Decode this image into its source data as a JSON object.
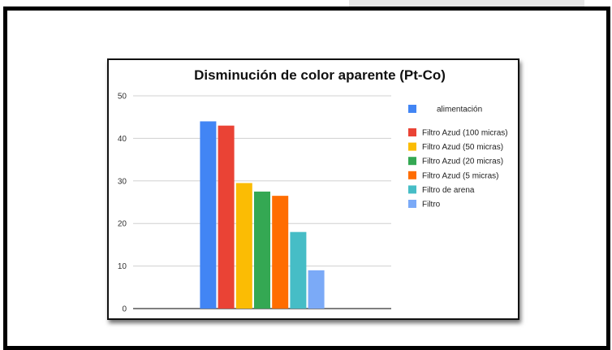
{
  "chart_data": {
    "type": "bar",
    "title": "Disminución de color aparente (Pt-Co)",
    "xlabel": "",
    "ylabel": "",
    "ylim": [
      0,
      50
    ],
    "yticks": [
      "0",
      "10",
      "20",
      "30",
      "40",
      "50"
    ],
    "grid": true,
    "legend_position": "right",
    "series": [
      {
        "name": "alimentación",
        "value": 44,
        "color": "#4285f4"
      },
      {
        "name": "Filtro Azud (100 micras)",
        "value": 43,
        "color": "#ea4335"
      },
      {
        "name": "Filtro Azud (50 micras)",
        "value": 29.5,
        "color": "#fbbc04"
      },
      {
        "name": "Filtro Azud (20 micras)",
        "value": 27.5,
        "color": "#34a853"
      },
      {
        "name": "Filtro Azud (5 micras)",
        "value": 26.5,
        "color": "#ff6d01"
      },
      {
        "name": "Filtro de arena",
        "value": 18,
        "color": "#46bdc6"
      },
      {
        "name": "Filtro",
        "value": 9,
        "color": "#7baaf7"
      }
    ]
  }
}
